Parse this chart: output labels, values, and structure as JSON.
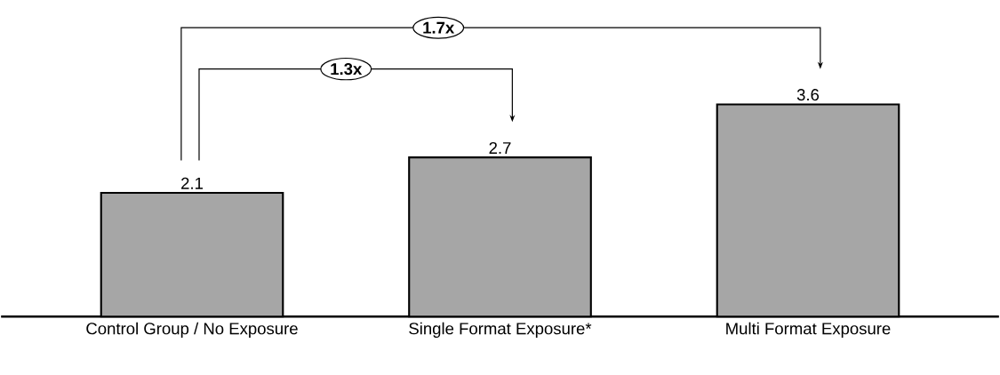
{
  "chart_data": {
    "type": "bar",
    "categories": [
      "Control Group / No Exposure",
      "Single Format Exposure*",
      "Multi Format Exposure"
    ],
    "values": [
      2.1,
      2.7,
      3.6
    ],
    "color": "#a6a6a6",
    "data_labels": true,
    "annotations": [
      "1.3x",
      "1.7x"
    ]
  }
}
